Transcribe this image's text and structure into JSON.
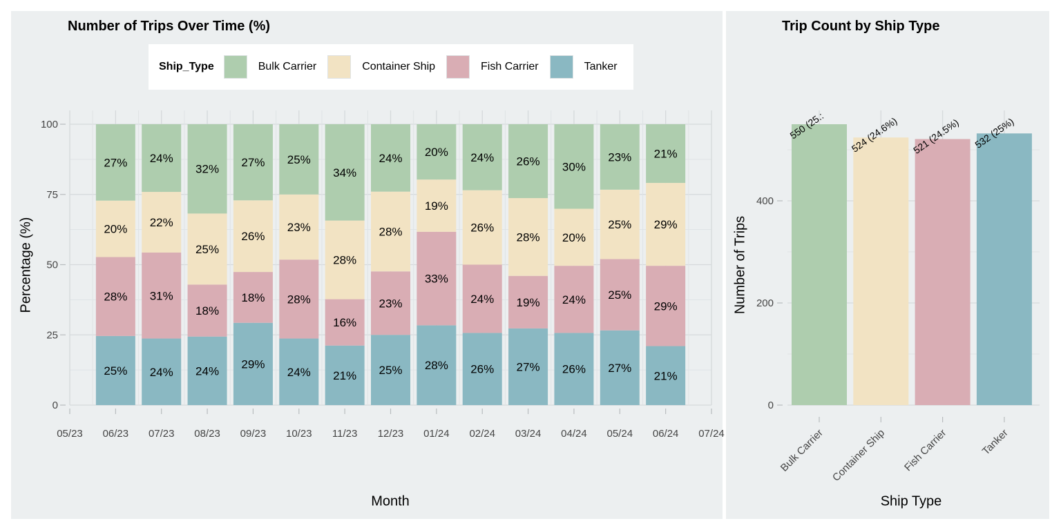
{
  "colors": {
    "Bulk Carrier": "#AECDAE",
    "Container Ship": "#F2E3C3",
    "Fish Carrier": "#D9ADB4",
    "Tanker": "#8AB8C2"
  },
  "legend": {
    "title": "Ship_Type",
    "items": [
      "Bulk Carrier",
      "Container Ship",
      "Fish Carrier",
      "Tanker"
    ]
  },
  "chart_data": [
    {
      "type": "bar",
      "stacked": true,
      "title": "Number of Trips Over Time (%)",
      "xlabel": "Month",
      "ylabel": "Percentage (%)",
      "ylim": [
        0,
        100
      ],
      "yticks": [
        0,
        25,
        50,
        75,
        100
      ],
      "xticks": [
        "05/23",
        "06/23",
        "07/23",
        "08/23",
        "09/23",
        "10/23",
        "11/23",
        "12/23",
        "01/24",
        "02/24",
        "03/24",
        "04/24",
        "05/24",
        "06/24",
        "07/24"
      ],
      "categories": [
        "06/23",
        "07/23",
        "08/23",
        "09/23",
        "10/23",
        "11/23",
        "12/23",
        "01/24",
        "02/24",
        "03/24",
        "04/24",
        "05/24",
        "06/24"
      ],
      "series": [
        {
          "name": "Tanker",
          "values": [
            24.6,
            23.7,
            24.4,
            29.3,
            23.7,
            21.2,
            25.0,
            28.4,
            25.7,
            27.3,
            25.7,
            26.6,
            21.0
          ],
          "labels": [
            "25%",
            "24%",
            "24%",
            "29%",
            "24%",
            "21%",
            "25%",
            "28%",
            "26%",
            "27%",
            "26%",
            "27%",
            "21%"
          ]
        },
        {
          "name": "Fish Carrier",
          "values": [
            28.1,
            30.6,
            18.5,
            18.1,
            28.1,
            16.5,
            22.6,
            33.3,
            24.3,
            18.7,
            23.9,
            25.4,
            28.6
          ],
          "labels": [
            "28%",
            "31%",
            "18%",
            "18%",
            "28%",
            "16%",
            "23%",
            "33%",
            "24%",
            "19%",
            "24%",
            "25%",
            "29%"
          ]
        },
        {
          "name": "Container Ship",
          "values": [
            20.1,
            21.6,
            25.3,
            25.5,
            23.2,
            28.0,
            28.4,
            18.6,
            26.5,
            27.7,
            20.3,
            24.7,
            29.5
          ],
          "labels": [
            "20%",
            "22%",
            "25%",
            "26%",
            "23%",
            "28%",
            "28%",
            "19%",
            "26%",
            "28%",
            "20%",
            "25%",
            "29%"
          ]
        },
        {
          "name": "Bulk Carrier",
          "values": [
            27.2,
            24.1,
            31.8,
            27.1,
            25.0,
            34.3,
            24.0,
            19.7,
            23.5,
            26.3,
            30.1,
            23.3,
            20.9
          ],
          "labels": [
            "27%",
            "24%",
            "32%",
            "27%",
            "25%",
            "34%",
            "24%",
            "20%",
            "24%",
            "26%",
            "30%",
            "23%",
            "21%"
          ]
        }
      ]
    },
    {
      "type": "bar",
      "title": "Trip Count by Ship Type",
      "xlabel": "Ship Type",
      "ylabel": "Number of Trips",
      "ylim": [
        0,
        550
      ],
      "yticks": [
        0,
        200,
        400
      ],
      "categories": [
        "Bulk Carrier",
        "Container Ship",
        "Fish Carrier",
        "Tanker"
      ],
      "values": [
        550,
        524,
        521,
        532
      ],
      "labels": [
        "550 (25.:",
        "524 (24.6%)",
        "521 (24.5%)",
        "532 (25%)"
      ]
    }
  ]
}
